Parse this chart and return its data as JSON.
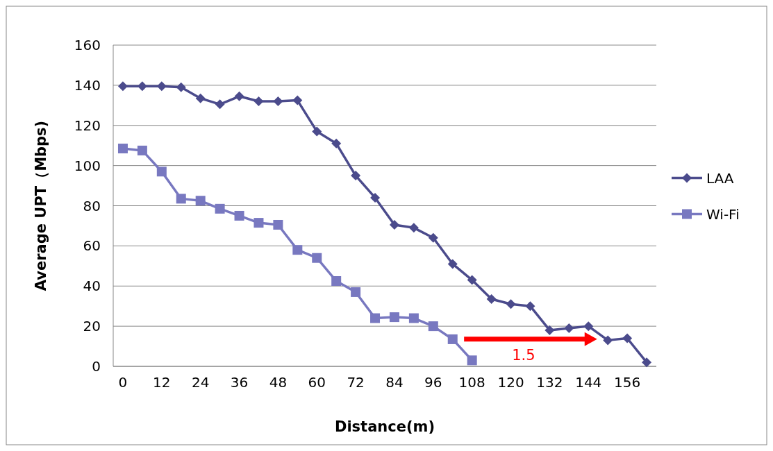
{
  "chart_data": {
    "type": "line",
    "xlabel": "Distance(m)",
    "ylabel": "Average UPT（Mbps)",
    "categories": [
      "0",
      null,
      "12",
      null,
      "24",
      null,
      "36",
      null,
      "48",
      null,
      "60",
      null,
      "72",
      null,
      "84",
      null,
      "96",
      null,
      "108",
      null,
      "120",
      null,
      "132",
      null,
      "144",
      null,
      "156",
      null
    ],
    "series": [
      {
        "name": "LAA",
        "color": "#4b4b8c",
        "marker": "diamond",
        "values": [
          139.5,
          139.5,
          139.5,
          139,
          133.5,
          130.5,
          134.5,
          132,
          132,
          132.5,
          117,
          111,
          95,
          84,
          70.5,
          69,
          64,
          51,
          43,
          33.5,
          31,
          30,
          18,
          19,
          20,
          13,
          14,
          2
        ]
      },
      {
        "name": "Wi-Fi",
        "color": "#7878c0",
        "marker": "square",
        "values": [
          108.5,
          107.5,
          97,
          83.5,
          82.5,
          78.5,
          75,
          71.5,
          70.5,
          58,
          54,
          42.5,
          37,
          24,
          24.5,
          24,
          20,
          13.5,
          3,
          null,
          null,
          null,
          null,
          null,
          null,
          null,
          null,
          null
        ]
      }
    ],
    "ylim": [
      0,
      160
    ],
    "yticks": [
      0,
      20,
      40,
      60,
      80,
      100,
      120,
      140,
      160
    ],
    "grid": "y",
    "legend": "right",
    "line_style": "solid",
    "annotations": [
      "1.5"
    ]
  }
}
